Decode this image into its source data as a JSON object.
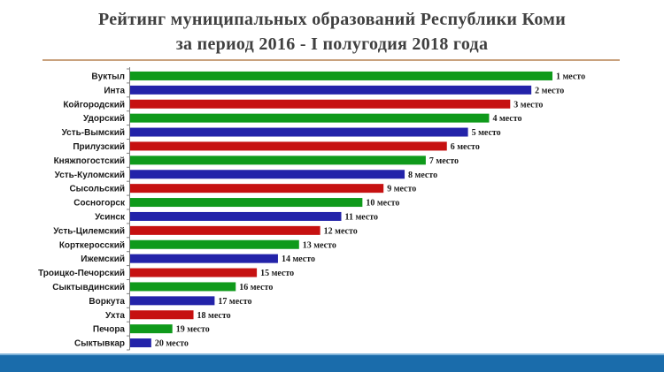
{
  "title": {
    "line1": "Рейтинг муниципальных образований Республики Коми",
    "line2": "за период 2016 - I полугодия 2018 года"
  },
  "colors": {
    "green": "#0f9a1b",
    "blue": "#2323a9",
    "red": "#c61111"
  },
  "chart_data": {
    "type": "bar",
    "orientation": "horizontal",
    "title": "Рейтинг муниципальных образований Республики Коми за период 2016 - I полугодия 2018 года",
    "categories": [
      "Вуктыл",
      "Инта",
      "Койгородский",
      "Удорский",
      "Усть-Вымский",
      "Прилузский",
      "Княжпогостский",
      "Усть-Куломский",
      "Сысольский",
      "Сосногорск",
      "Усинск",
      "Усть-Цилемский",
      "Корткеросский",
      "Ижемский",
      "Троицко-Печорский",
      "Сыктывдинский",
      "Воркута",
      "Ухта",
      "Печора",
      "Сыктывкар"
    ],
    "values": [
      20,
      19,
      18,
      17,
      16,
      15,
      14,
      13,
      12,
      11,
      10,
      9,
      8,
      7,
      6,
      5,
      4,
      3,
      2,
      1
    ],
    "labels": [
      "1 место",
      "2 место",
      "3 место",
      "4 место",
      "5 место",
      "6 место",
      "7 место",
      "8 место",
      "9 место",
      "10 место",
      "11 место",
      "12 место",
      "13 место",
      "14 место",
      "15 место",
      "16 место",
      "17 место",
      "18 место",
      "19 место",
      "20 место"
    ],
    "bar_colors": [
      "green",
      "blue",
      "red",
      "green",
      "blue",
      "red",
      "green",
      "blue",
      "red",
      "green",
      "blue",
      "red",
      "green",
      "blue",
      "red",
      "green",
      "blue",
      "red",
      "green",
      "blue"
    ],
    "xlim": [
      0,
      20
    ],
    "grid": false,
    "legend": "none"
  }
}
